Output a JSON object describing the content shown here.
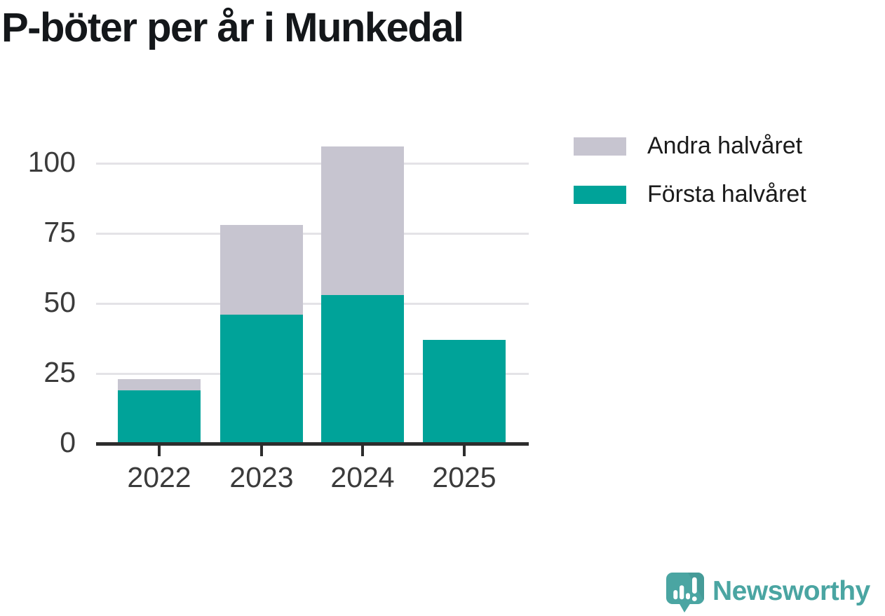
{
  "title": "P-böter per år i Munkedal",
  "colors": {
    "first_half": "#00a399",
    "second_half": "#c7c5d0",
    "gridline": "#e4e3e7",
    "axis": "#2d2d2d",
    "label_text": "#3b3b3b",
    "legend_text": "#1b1b1b",
    "title_text": "#14171a",
    "logo_teal": "#4aa5a2",
    "logo_teal_dark": "#459b98"
  },
  "chart_data": {
    "type": "bar",
    "stacked": true,
    "title": "P-böter per år i Munkedal",
    "categories": [
      "2022",
      "2023",
      "2024",
      "2025"
    ],
    "series": [
      {
        "name": "Första halvåret",
        "values": [
          19,
          46,
          53,
          37
        ],
        "color": "#00a399"
      },
      {
        "name": "Andra halvåret",
        "values": [
          4,
          32,
          53,
          0
        ],
        "color": "#c7c5d0"
      }
    ],
    "totals": [
      23,
      78,
      106,
      37
    ],
    "xlabel": "",
    "ylabel": "",
    "ylim": [
      0,
      110
    ],
    "yticks": [
      0,
      25,
      50,
      75,
      100
    ],
    "grid": true,
    "legend_position": "top-right"
  },
  "legend": {
    "items": [
      {
        "label": "Andra halvåret",
        "color": "#c7c5d0"
      },
      {
        "label": "Första halvåret",
        "color": "#00a399"
      }
    ]
  },
  "footer": {
    "brand": "Newsworthy"
  }
}
